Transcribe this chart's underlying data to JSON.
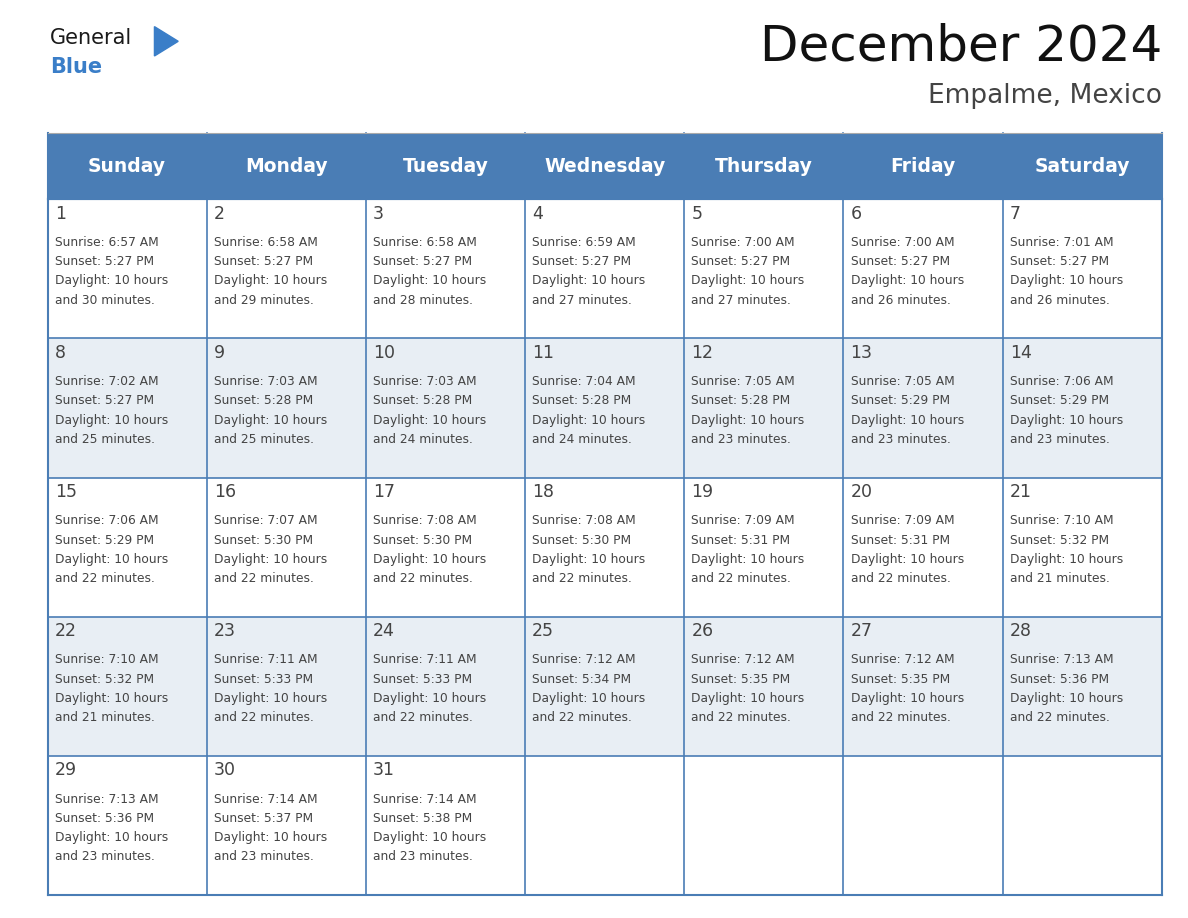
{
  "title": "December 2024",
  "subtitle": "Empalme, Mexico",
  "header_color": "#4A7DB5",
  "header_text_color": "#FFFFFF",
  "day_names": [
    "Sunday",
    "Monday",
    "Tuesday",
    "Wednesday",
    "Thursday",
    "Friday",
    "Saturday"
  ],
  "background_color": "#FFFFFF",
  "cell_bg_alt": "#E8EEF4",
  "cell_bg_white": "#FFFFFF",
  "grid_color": "#4A7DB5",
  "text_color": "#444444",
  "logo_general_color": "#222222",
  "logo_blue_color": "#3A7EC8",
  "weeks": [
    [
      {
        "day": 1,
        "sunrise": "6:57 AM",
        "sunset": "5:27 PM",
        "daylight_hours": 10,
        "daylight_minutes": 30
      },
      {
        "day": 2,
        "sunrise": "6:58 AM",
        "sunset": "5:27 PM",
        "daylight_hours": 10,
        "daylight_minutes": 29
      },
      {
        "day": 3,
        "sunrise": "6:58 AM",
        "sunset": "5:27 PM",
        "daylight_hours": 10,
        "daylight_minutes": 28
      },
      {
        "day": 4,
        "sunrise": "6:59 AM",
        "sunset": "5:27 PM",
        "daylight_hours": 10,
        "daylight_minutes": 27
      },
      {
        "day": 5,
        "sunrise": "7:00 AM",
        "sunset": "5:27 PM",
        "daylight_hours": 10,
        "daylight_minutes": 27
      },
      {
        "day": 6,
        "sunrise": "7:00 AM",
        "sunset": "5:27 PM",
        "daylight_hours": 10,
        "daylight_minutes": 26
      },
      {
        "day": 7,
        "sunrise": "7:01 AM",
        "sunset": "5:27 PM",
        "daylight_hours": 10,
        "daylight_minutes": 26
      }
    ],
    [
      {
        "day": 8,
        "sunrise": "7:02 AM",
        "sunset": "5:27 PM",
        "daylight_hours": 10,
        "daylight_minutes": 25
      },
      {
        "day": 9,
        "sunrise": "7:03 AM",
        "sunset": "5:28 PM",
        "daylight_hours": 10,
        "daylight_minutes": 25
      },
      {
        "day": 10,
        "sunrise": "7:03 AM",
        "sunset": "5:28 PM",
        "daylight_hours": 10,
        "daylight_minutes": 24
      },
      {
        "day": 11,
        "sunrise": "7:04 AM",
        "sunset": "5:28 PM",
        "daylight_hours": 10,
        "daylight_minutes": 24
      },
      {
        "day": 12,
        "sunrise": "7:05 AM",
        "sunset": "5:28 PM",
        "daylight_hours": 10,
        "daylight_minutes": 23
      },
      {
        "day": 13,
        "sunrise": "7:05 AM",
        "sunset": "5:29 PM",
        "daylight_hours": 10,
        "daylight_minutes": 23
      },
      {
        "day": 14,
        "sunrise": "7:06 AM",
        "sunset": "5:29 PM",
        "daylight_hours": 10,
        "daylight_minutes": 23
      }
    ],
    [
      {
        "day": 15,
        "sunrise": "7:06 AM",
        "sunset": "5:29 PM",
        "daylight_hours": 10,
        "daylight_minutes": 22
      },
      {
        "day": 16,
        "sunrise": "7:07 AM",
        "sunset": "5:30 PM",
        "daylight_hours": 10,
        "daylight_minutes": 22
      },
      {
        "day": 17,
        "sunrise": "7:08 AM",
        "sunset": "5:30 PM",
        "daylight_hours": 10,
        "daylight_minutes": 22
      },
      {
        "day": 18,
        "sunrise": "7:08 AM",
        "sunset": "5:30 PM",
        "daylight_hours": 10,
        "daylight_minutes": 22
      },
      {
        "day": 19,
        "sunrise": "7:09 AM",
        "sunset": "5:31 PM",
        "daylight_hours": 10,
        "daylight_minutes": 22
      },
      {
        "day": 20,
        "sunrise": "7:09 AM",
        "sunset": "5:31 PM",
        "daylight_hours": 10,
        "daylight_minutes": 22
      },
      {
        "day": 21,
        "sunrise": "7:10 AM",
        "sunset": "5:32 PM",
        "daylight_hours": 10,
        "daylight_minutes": 21
      }
    ],
    [
      {
        "day": 22,
        "sunrise": "7:10 AM",
        "sunset": "5:32 PM",
        "daylight_hours": 10,
        "daylight_minutes": 21
      },
      {
        "day": 23,
        "sunrise": "7:11 AM",
        "sunset": "5:33 PM",
        "daylight_hours": 10,
        "daylight_minutes": 22
      },
      {
        "day": 24,
        "sunrise": "7:11 AM",
        "sunset": "5:33 PM",
        "daylight_hours": 10,
        "daylight_minutes": 22
      },
      {
        "day": 25,
        "sunrise": "7:12 AM",
        "sunset": "5:34 PM",
        "daylight_hours": 10,
        "daylight_minutes": 22
      },
      {
        "day": 26,
        "sunrise": "7:12 AM",
        "sunset": "5:35 PM",
        "daylight_hours": 10,
        "daylight_minutes": 22
      },
      {
        "day": 27,
        "sunrise": "7:12 AM",
        "sunset": "5:35 PM",
        "daylight_hours": 10,
        "daylight_minutes": 22
      },
      {
        "day": 28,
        "sunrise": "7:13 AM",
        "sunset": "5:36 PM",
        "daylight_hours": 10,
        "daylight_minutes": 22
      }
    ],
    [
      {
        "day": 29,
        "sunrise": "7:13 AM",
        "sunset": "5:36 PM",
        "daylight_hours": 10,
        "daylight_minutes": 23
      },
      {
        "day": 30,
        "sunrise": "7:14 AM",
        "sunset": "5:37 PM",
        "daylight_hours": 10,
        "daylight_minutes": 23
      },
      {
        "day": 31,
        "sunrise": "7:14 AM",
        "sunset": "5:38 PM",
        "daylight_hours": 10,
        "daylight_minutes": 23
      },
      null,
      null,
      null,
      null
    ]
  ]
}
